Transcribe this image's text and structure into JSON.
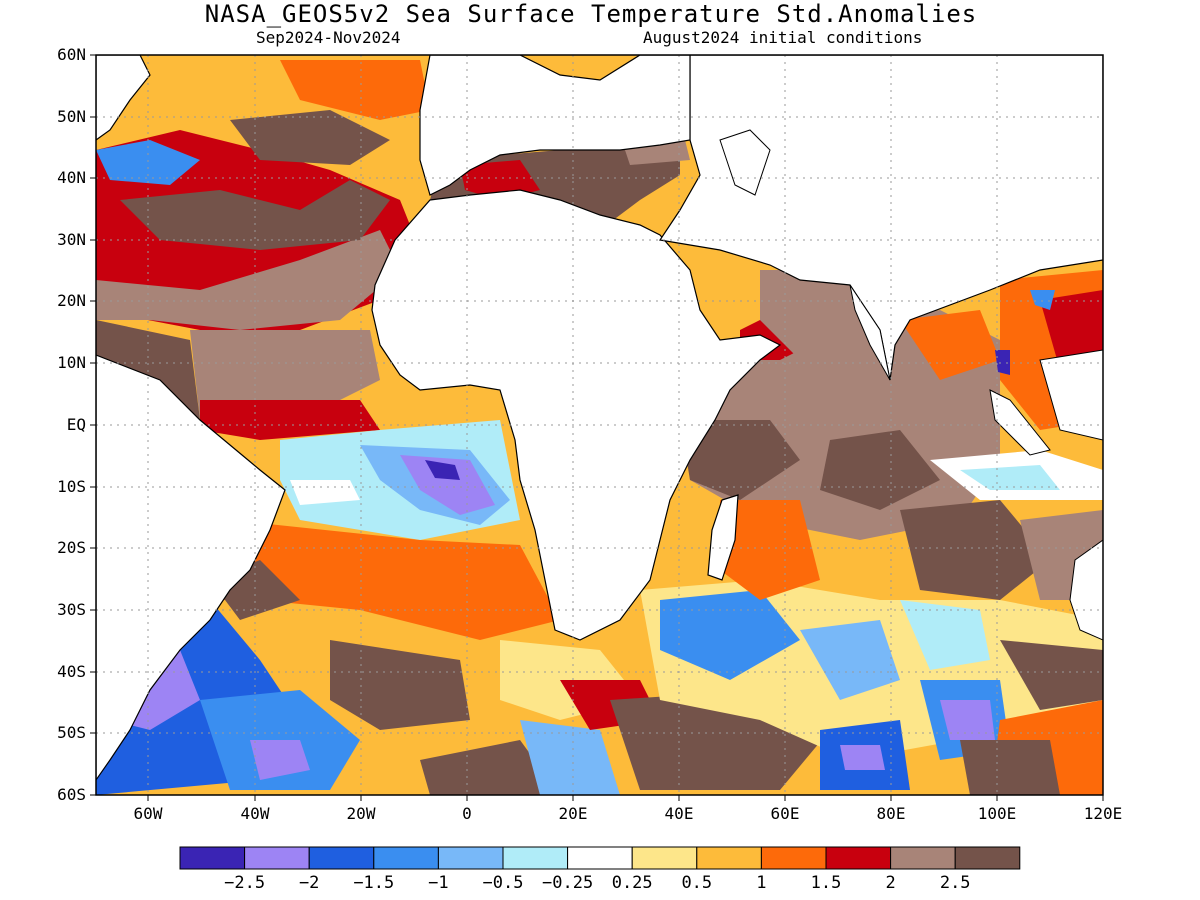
{
  "title": "NASA_GEOS5v2 Sea Surface Temperature Std.Anomalies",
  "subtitle_left": "Sep2024-Nov2024",
  "subtitle_right": "August2024 initial conditions",
  "lat_labels": [
    "60N",
    "50N",
    "40N",
    "30N",
    "20N",
    "10N",
    "EQ",
    "10S",
    "20S",
    "30S",
    "40S",
    "50S",
    "60S"
  ],
  "lon_labels": [
    "60W",
    "40W",
    "20W",
    "0",
    "20E",
    "40E",
    "60E",
    "80E",
    "100E",
    "120E"
  ],
  "colorbar": {
    "colors": [
      "#3a24b4",
      "#9d84f4",
      "#1f5fe0",
      "#3a8ef0",
      "#78b8f8",
      "#b0ecf8",
      "#ffffff",
      "#fde68a",
      "#fdbb3a",
      "#fd6a0a",
      "#c8000e",
      "#a88478",
      "#74534a"
    ],
    "labels": [
      "-2.5",
      "-2",
      "-1.5",
      "-1",
      "-0.5",
      "-0.25",
      "0.25",
      "0.5",
      "1",
      "1.5",
      "2",
      "2.5"
    ]
  }
}
